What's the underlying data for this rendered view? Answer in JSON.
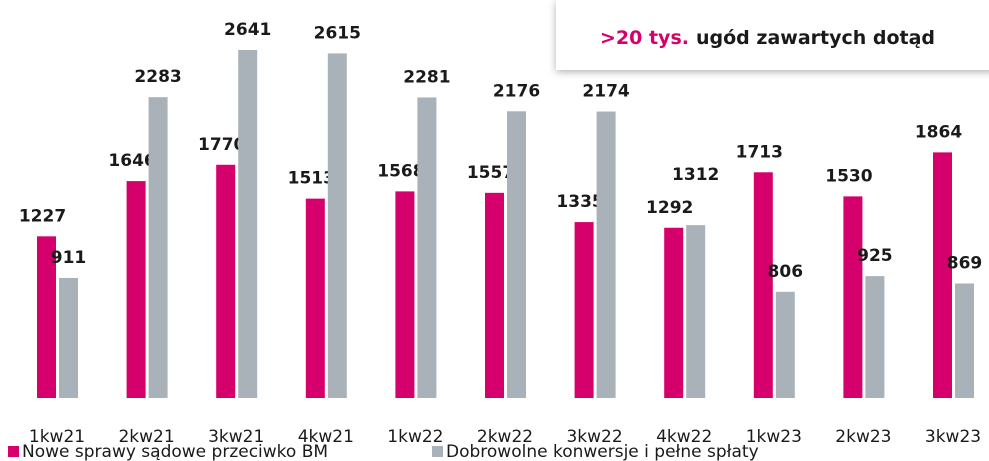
{
  "chart_data": {
    "type": "bar",
    "annotation": {
      "highlight": ">20 tys.",
      "text": "ugód zawartych dotąd"
    },
    "categories": [
      "1kw21",
      "2kw21",
      "3kw21",
      "4kw21",
      "1kw22",
      "2kw22",
      "3kw22",
      "4kw22",
      "1kw23",
      "2kw23",
      "3kw23"
    ],
    "series": [
      {
        "name": "Nowe sprawy sądowe przeciwko BM",
        "color": "#d6006c",
        "values": [
          1227,
          1646,
          1770,
          1513,
          1568,
          1557,
          1335,
          1292,
          1713,
          1530,
          1864
        ]
      },
      {
        "name": "Dobrowolne konwersje i pełne spłaty",
        "color": "#aab2b9",
        "values": [
          911,
          2283,
          2641,
          2615,
          2281,
          2176,
          2174,
          1312,
          806,
          925,
          869
        ]
      }
    ],
    "legend": "bottom-left"
  }
}
